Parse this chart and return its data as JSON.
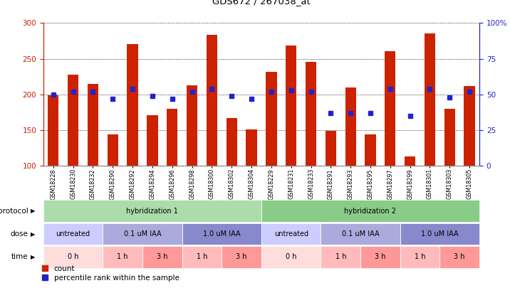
{
  "title": "GDS672 / 267038_at",
  "samples": [
    "GSM18228",
    "GSM18230",
    "GSM18232",
    "GSM18290",
    "GSM18292",
    "GSM18294",
    "GSM18296",
    "GSM18298",
    "GSM18300",
    "GSM18302",
    "GSM18304",
    "GSM18229",
    "GSM18231",
    "GSM18233",
    "GSM18291",
    "GSM18293",
    "GSM18295",
    "GSM18297",
    "GSM18299",
    "GSM18301",
    "GSM18303",
    "GSM18305"
  ],
  "counts": [
    199,
    228,
    215,
    144,
    270,
    171,
    180,
    213,
    283,
    167,
    151,
    232,
    268,
    246,
    149,
    210,
    144,
    260,
    113,
    285,
    180,
    212
  ],
  "percentile": [
    50,
    52,
    52,
    47,
    54,
    49,
    47,
    52,
    54,
    49,
    47,
    52,
    53,
    52,
    37,
    37,
    37,
    54,
    35,
    54,
    48,
    52
  ],
  "ylim_left": [
    100,
    300
  ],
  "ylim_right": [
    0,
    100
  ],
  "yticks_left": [
    100,
    150,
    200,
    250,
    300
  ],
  "yticks_right": [
    0,
    25,
    50,
    75,
    100
  ],
  "bar_color": "#cc2200",
  "dot_color": "#2222cc",
  "bg_color": "#ffffff",
  "axis_color_left": "#cc2200",
  "axis_color_right": "#2222cc",
  "protocol_row": {
    "label": "protocol",
    "groups": [
      {
        "text": "hybridization 1",
        "start": 0,
        "end": 11,
        "color": "#aaddaa"
      },
      {
        "text": "hybridization 2",
        "start": 11,
        "end": 22,
        "color": "#88cc88"
      }
    ]
  },
  "dose_row": {
    "label": "dose",
    "groups": [
      {
        "text": "untreated",
        "start": 0,
        "end": 3,
        "color": "#ccccff"
      },
      {
        "text": "0.1 uM IAA",
        "start": 3,
        "end": 7,
        "color": "#aaaadd"
      },
      {
        "text": "1.0 uM IAA",
        "start": 7,
        "end": 11,
        "color": "#8888cc"
      },
      {
        "text": "untreated",
        "start": 11,
        "end": 14,
        "color": "#ccccff"
      },
      {
        "text": "0.1 uM IAA",
        "start": 14,
        "end": 18,
        "color": "#aaaadd"
      },
      {
        "text": "1.0 uM IAA",
        "start": 18,
        "end": 22,
        "color": "#8888cc"
      }
    ]
  },
  "time_row": {
    "label": "time",
    "groups": [
      {
        "text": "0 h",
        "start": 0,
        "end": 3,
        "color": "#ffdddd"
      },
      {
        "text": "1 h",
        "start": 3,
        "end": 5,
        "color": "#ffbbbb"
      },
      {
        "text": "3 h",
        "start": 5,
        "end": 7,
        "color": "#ff9999"
      },
      {
        "text": "1 h",
        "start": 7,
        "end": 9,
        "color": "#ffbbbb"
      },
      {
        "text": "3 h",
        "start": 9,
        "end": 11,
        "color": "#ff9999"
      },
      {
        "text": "0 h",
        "start": 11,
        "end": 14,
        "color": "#ffdddd"
      },
      {
        "text": "1 h",
        "start": 14,
        "end": 16,
        "color": "#ffbbbb"
      },
      {
        "text": "3 h",
        "start": 16,
        "end": 18,
        "color": "#ff9999"
      },
      {
        "text": "1 h",
        "start": 18,
        "end": 20,
        "color": "#ffbbbb"
      },
      {
        "text": "3 h",
        "start": 20,
        "end": 22,
        "color": "#ff9999"
      }
    ]
  },
  "legend_items": [
    {
      "label": "count",
      "color": "#cc2200"
    },
    {
      "label": "percentile rank within the sample",
      "color": "#2222cc"
    }
  ]
}
